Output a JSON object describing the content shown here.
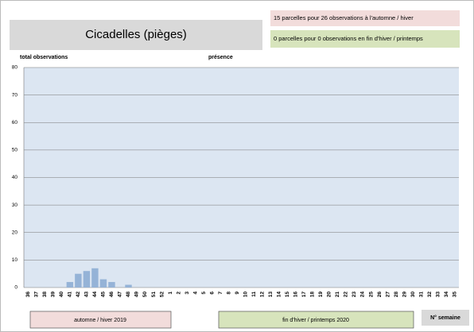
{
  "chart_data": {
    "type": "bar",
    "title": "Cicadelles (pièges)",
    "notes": [
      "15 parcelles pour 26 observations à l'automne / hiver",
      "0 parcelles pour 0 observations en fin d'hiver / printemps"
    ],
    "ylabel": "total observations",
    "presence_label": "présence",
    "periods": [
      "automne / hiver 2019",
      "fin d'hiver / printemps 2020"
    ],
    "xlabel": "N° semaine",
    "categories": [
      "36",
      "37",
      "38",
      "39",
      "40",
      "41",
      "42",
      "43",
      "44",
      "45",
      "46",
      "47",
      "48",
      "49",
      "50",
      "51",
      "52",
      "1",
      "2",
      "3",
      "4",
      "5",
      "6",
      "7",
      "8",
      "9",
      "10",
      "11",
      "12",
      "13",
      "14",
      "15",
      "16",
      "17",
      "18",
      "19",
      "20",
      "21",
      "22",
      "23",
      "24",
      "25",
      "26",
      "27",
      "28",
      "29",
      "30",
      "31",
      "32",
      "33",
      "34",
      "35"
    ],
    "values": [
      0,
      0,
      0,
      0,
      0,
      2,
      5,
      6,
      7,
      3,
      2,
      0,
      1,
      0,
      0,
      0,
      0,
      0,
      0,
      0,
      0,
      0,
      0,
      0,
      0,
      0,
      0,
      0,
      0,
      0,
      0,
      0,
      0,
      0,
      0,
      0,
      0,
      0,
      0,
      0,
      0,
      0,
      0,
      0,
      0,
      0,
      0,
      0,
      0,
      0,
      0,
      0
    ],
    "color": "#95b3d7",
    "ylim": [
      0,
      80
    ],
    "yticks": [
      0,
      10,
      20,
      30,
      40,
      50,
      60,
      70,
      80
    ],
    "grid": true
  }
}
